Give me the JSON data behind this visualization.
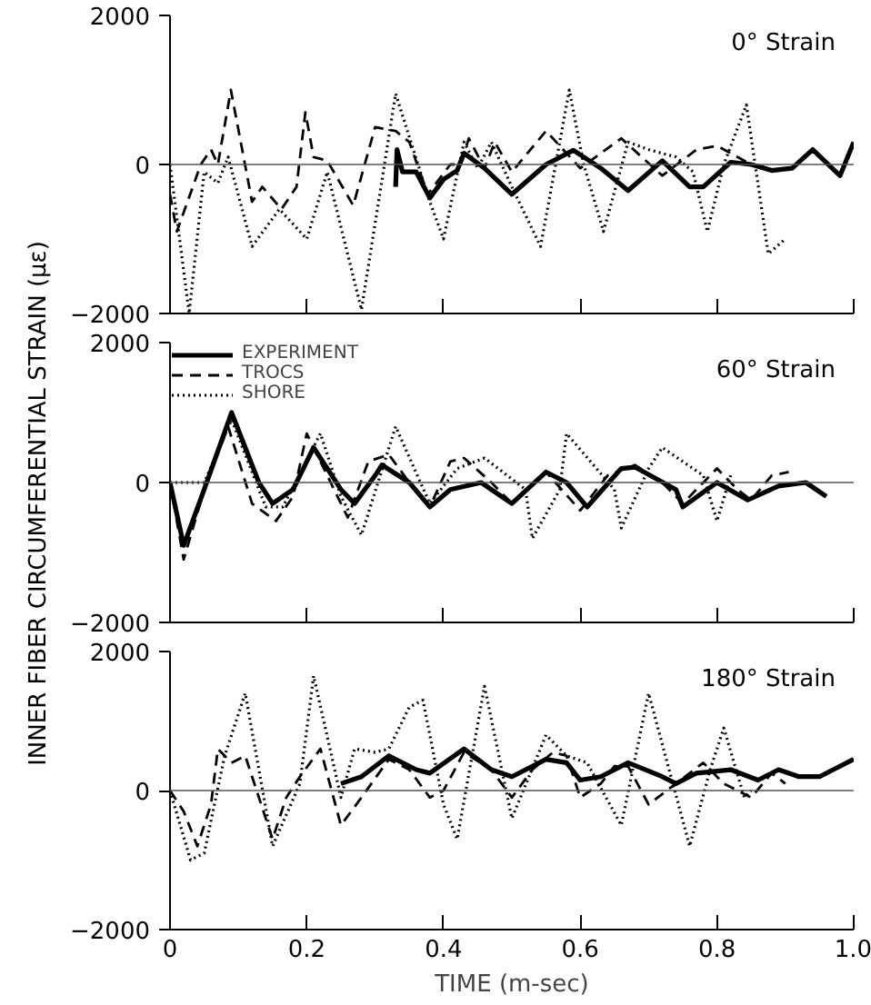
{
  "chart_data": [
    {
      "type": "line",
      "annotations": [
        "0° Strain"
      ],
      "xlim": [
        0,
        1
      ],
      "ylim": [
        -2000,
        2000
      ],
      "xticks": [
        0,
        0.2,
        0.4,
        0.6,
        0.8,
        1
      ],
      "yticks": [
        -2000,
        0,
        2000
      ],
      "tick_labels": "y",
      "grid": false,
      "legend": false,
      "ref_lines": [
        {
          "axis": "y",
          "value": 0,
          "label": null
        }
      ],
      "series": [
        {
          "color": "#000000",
          "line_style": "solid",
          "x": [
            0.33,
            0.332,
            0.34,
            0.36,
            0.38,
            0.4,
            0.42,
            0.43,
            0.46,
            0.5,
            0.55,
            0.59,
            0.63,
            0.67,
            0.72,
            0.76,
            0.78,
            0.82,
            0.85,
            0.88,
            0.91,
            0.94,
            0.98,
            1.0
          ],
          "values": [
            -300,
            200,
            -100,
            -100,
            -450,
            -200,
            -80,
            150,
            -50,
            -400,
            0,
            190,
            -50,
            -350,
            50,
            -300,
            -300,
            30,
            0,
            -80,
            -50,
            200,
            -150,
            300
          ]
        },
        {
          "color": "#000000",
          "line_style": "dashed",
          "x": [
            0,
            0.01,
            0.045,
            0.06,
            0.07,
            0.089,
            0.12,
            0.135,
            0.163,
            0.185,
            0.198,
            0.21,
            0.23,
            0.268,
            0.3,
            0.33,
            0.35,
            0.377,
            0.41,
            0.425,
            0.437,
            0.46,
            0.475,
            0.5,
            0.55,
            0.6,
            0.66,
            0.72,
            0.77,
            0.8,
            0.83,
            0.85
          ],
          "values": [
            -400,
            -900,
            0,
            200,
            0,
            1000,
            -500,
            -300,
            -600,
            -300,
            700,
            100,
            50,
            -550,
            500,
            450,
            300,
            -400,
            0,
            0,
            350,
            -50,
            300,
            -100,
            450,
            -50,
            350,
            -150,
            200,
            250,
            100,
            0
          ]
        },
        {
          "color": "#000000",
          "line_style": "dotted",
          "x": [
            0,
            0.028,
            0.05,
            0.07,
            0.085,
            0.12,
            0.16,
            0.2,
            0.23,
            0.28,
            0.33,
            0.38,
            0.4,
            0.43,
            0.45,
            0.47,
            0.5,
            0.542,
            0.584,
            0.605,
            0.634,
            0.67,
            0.7,
            0.74,
            0.765,
            0.786,
            0.81,
            0.843,
            0.875,
            0.9
          ],
          "values": [
            0,
            -2000,
            -100,
            -250,
            100,
            -1100,
            -600,
            -1000,
            -100,
            -1950,
            950,
            -500,
            -1000,
            300,
            -50,
            300,
            -300,
            -1100,
            1000,
            0,
            -900,
            300,
            200,
            100,
            -100,
            -900,
            0,
            800,
            -1200,
            -1000
          ]
        }
      ]
    },
    {
      "type": "line",
      "annotations": [
        "60° Strain"
      ],
      "ylabel": "INNER FIBER CIRCUMFERENTIAL STRAIN (με)",
      "xlim": [
        0,
        1
      ],
      "ylim": [
        -2000,
        2000
      ],
      "xticks": [
        0,
        0.2,
        0.4,
        0.6,
        0.8,
        1
      ],
      "yticks": [
        -2000,
        0,
        2000
      ],
      "tick_labels": "y",
      "grid": false,
      "legend": "top left",
      "ref_lines": [
        {
          "axis": "y",
          "value": 0,
          "label": null
        }
      ],
      "series": [
        {
          "name": "EXPERIMENT",
          "color": "#000000",
          "line_style": "solid",
          "x": [
            0,
            0.02,
            0.05,
            0.09,
            0.13,
            0.15,
            0.18,
            0.21,
            0.25,
            0.27,
            0.3,
            0.31,
            0.35,
            0.38,
            0.41,
            0.455,
            0.5,
            0.55,
            0.58,
            0.61,
            0.66,
            0.68,
            0.74,
            0.75,
            0.8,
            0.845,
            0.89,
            0.93,
            0.96
          ],
          "values": [
            0,
            -900,
            -100,
            1000,
            0,
            -300,
            -100,
            500,
            -100,
            -300,
            100,
            250,
            0,
            -350,
            -100,
            0,
            -300,
            150,
            0,
            -350,
            200,
            220,
            -100,
            -350,
            0,
            -250,
            -50,
            0,
            -200
          ]
        },
        {
          "name": "TROCS",
          "color": "#000000",
          "line_style": "dashed",
          "x": [
            0,
            0.02,
            0.05,
            0.085,
            0.12,
            0.155,
            0.18,
            0.2,
            0.23,
            0.26,
            0.29,
            0.32,
            0.35,
            0.38,
            0.41,
            0.43,
            0.47,
            0.5,
            0.55,
            0.6,
            0.64,
            0.68,
            0.72,
            0.75,
            0.8,
            0.83,
            0.85,
            0.88,
            0.905
          ],
          "values": [
            0,
            -1100,
            -100,
            800,
            -300,
            -550,
            -200,
            700,
            100,
            -500,
            300,
            400,
            0,
            -350,
            300,
            350,
            0,
            -300,
            150,
            -400,
            100,
            250,
            0,
            -300,
            200,
            -100,
            -250,
            100,
            150
          ]
        },
        {
          "name": "SHORE",
          "color": "#000000",
          "line_style": "dotted",
          "x": [
            0,
            0.05,
            0.09,
            0.14,
            0.165,
            0.22,
            0.25,
            0.28,
            0.33,
            0.38,
            0.42,
            0.46,
            0.52,
            0.53,
            0.57,
            0.58,
            0.65,
            0.66,
            0.7,
            0.72,
            0.78,
            0.8,
            0.82
          ],
          "values": [
            0,
            0,
            900,
            -350,
            -350,
            700,
            -200,
            -750,
            800,
            -300,
            200,
            350,
            -100,
            -800,
            -100,
            700,
            -100,
            -650,
            200,
            500,
            100,
            -550,
            100
          ]
        }
      ]
    },
    {
      "type": "line",
      "annotations": [
        "180° Strain"
      ],
      "xlabel": "TIME (m-sec)",
      "xlim": [
        0,
        1
      ],
      "ylim": [
        -2000,
        2000
      ],
      "xticks": [
        0,
        0.2,
        0.4,
        0.6,
        0.8,
        {
          "value": 1,
          "label": "1.0"
        }
      ],
      "yticks": [
        -2000,
        0,
        2000
      ],
      "grid": false,
      "legend": false,
      "ref_lines": [
        {
          "axis": "y",
          "value": 0,
          "label": null
        }
      ],
      "series": [
        {
          "color": "#000000",
          "line_style": "solid",
          "x": [
            0.25,
            0.28,
            0.32,
            0.36,
            0.38,
            0.43,
            0.47,
            0.5,
            0.55,
            0.58,
            0.6,
            0.63,
            0.67,
            0.72,
            0.74,
            0.77,
            0.82,
            0.86,
            0.89,
            0.92,
            0.95,
            0.97,
            1.0
          ],
          "values": [
            100,
            200,
            500,
            300,
            250,
            600,
            300,
            200,
            450,
            400,
            150,
            200,
            400,
            200,
            100,
            250,
            300,
            150,
            300,
            200,
            200,
            300,
            450
          ]
        },
        {
          "color": "#000000",
          "line_style": "dashed",
          "x": [
            0,
            0.02,
            0.04,
            0.06,
            0.07,
            0.09,
            0.11,
            0.15,
            0.17,
            0.19,
            0.22,
            0.25,
            0.28,
            0.32,
            0.35,
            0.38,
            0.4,
            0.43,
            0.47,
            0.5,
            0.53,
            0.56,
            0.58,
            0.6,
            0.63,
            0.65,
            0.67,
            0.7,
            0.74,
            0.78,
            0.81,
            0.85,
            0.88,
            0.9
          ],
          "values": [
            0,
            -300,
            -800,
            -200,
            600,
            400,
            500,
            -700,
            -100,
            200,
            600,
            -500,
            -100,
            450,
            300,
            -100,
            0,
            550,
            300,
            -100,
            300,
            550,
            500,
            -100,
            100,
            350,
            350,
            -200,
            100,
            400,
            100,
            -100,
            250,
            100
          ]
        },
        {
          "color": "#000000",
          "line_style": "dotted",
          "x": [
            0,
            0.03,
            0.05,
            0.08,
            0.11,
            0.15,
            0.19,
            0.21,
            0.25,
            0.27,
            0.3,
            0.32,
            0.35,
            0.37,
            0.4,
            0.42,
            0.46,
            0.5,
            0.55,
            0.58,
            0.61,
            0.66,
            0.7,
            0.76,
            0.79,
            0.81,
            0.84,
            0.85
          ],
          "values": [
            0,
            -1000,
            -900,
            500,
            1400,
            -800,
            100,
            1650,
            -100,
            600,
            550,
            600,
            1200,
            1300,
            -200,
            -700,
            1500,
            -400,
            800,
            500,
            400,
            -500,
            1400,
            -800,
            300,
            900,
            -100,
            0
          ]
        }
      ]
    }
  ]
}
